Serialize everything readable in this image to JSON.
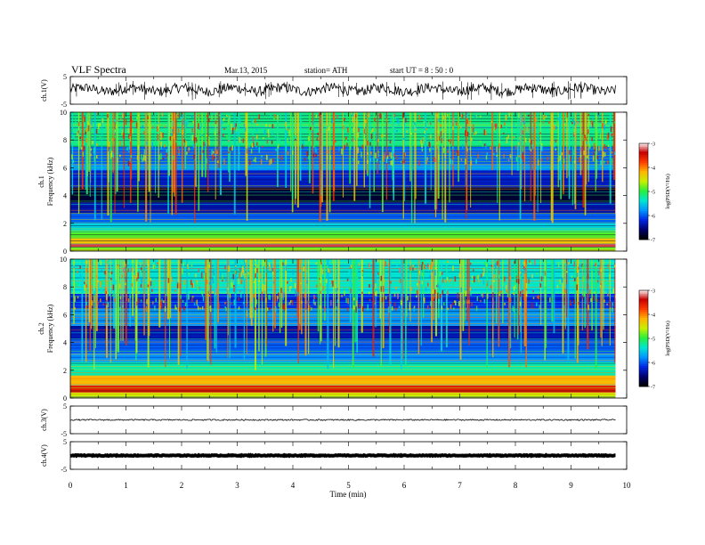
{
  "header": {
    "title": "VLF  Spectra",
    "date": "Mar.13, 2015",
    "station": "station= ATH",
    "start": "start  UT  =    8 : 50 : 0"
  },
  "chart_data": {
    "type": "heatmap",
    "xlabel": "Time  (min)",
    "xlim": [
      0,
      10
    ],
    "x_ticks": [
      "0",
      "1",
      "2",
      "3",
      "4",
      "5",
      "6",
      "7",
      "8",
      "9",
      "10"
    ],
    "data_end_min": 9.8,
    "panels": [
      {
        "kind": "waveform",
        "ylabel": "ch.1(V)",
        "yticks": [
          "5",
          "-5"
        ],
        "ylim": [
          -5,
          5
        ],
        "trace_level": 0.3,
        "noise": "high"
      },
      {
        "kind": "spectrogram",
        "ylabel_channel": "ch.1",
        "ylabel": "Frequency  (kHz)",
        "yticks": [
          "10",
          "8",
          "6",
          "4",
          "2",
          "0"
        ],
        "ylim": [
          0,
          10
        ],
        "colorbar": {
          "label": "log(PSD(V²/Hz)",
          "ticks": [
            "-3",
            "-4",
            "-5",
            "-6",
            "-7"
          ],
          "range": [
            -7,
            -3
          ]
        },
        "bands": [
          {
            "from": 0.0,
            "to": 0.3,
            "level": -4.8
          },
          {
            "from": 0.3,
            "to": 0.5,
            "level": -3.3
          },
          {
            "from": 0.5,
            "to": 0.9,
            "level": -4.3
          },
          {
            "from": 0.9,
            "to": 1.5,
            "level": -4.9
          },
          {
            "from": 1.5,
            "to": 2.0,
            "level": -5.5
          },
          {
            "from": 2.0,
            "to": 2.7,
            "level": -6.0
          },
          {
            "from": 2.7,
            "to": 3.5,
            "level": -6.4
          },
          {
            "from": 3.5,
            "to": 4.6,
            "level": -6.8
          },
          {
            "from": 4.6,
            "to": 5.8,
            "level": -6.3
          },
          {
            "from": 5.8,
            "to": 6.2,
            "level": -5.8
          },
          {
            "from": 6.2,
            "to": 7.5,
            "level": -6.0
          },
          {
            "from": 7.5,
            "to": 10.0,
            "level": -5.2
          }
        ]
      },
      {
        "kind": "spectrogram",
        "ylabel_channel": "ch.2",
        "ylabel": "Frequency  (kHz)",
        "yticks": [
          "10",
          "8",
          "6",
          "4",
          "2",
          "0"
        ],
        "ylim": [
          0,
          10
        ],
        "colorbar": {
          "label": "log(PSD(V²/Hz)",
          "ticks": [
            "-3",
            "-4",
            "-5",
            "-6",
            "-7"
          ],
          "range": [
            -7,
            -3
          ]
        },
        "bands": [
          {
            "from": 0.0,
            "to": 0.4,
            "level": -4.6
          },
          {
            "from": 0.4,
            "to": 0.9,
            "level": -3.6
          },
          {
            "from": 0.9,
            "to": 1.6,
            "level": -4.2
          },
          {
            "from": 1.6,
            "to": 2.6,
            "level": -5.3
          },
          {
            "from": 2.6,
            "to": 3.2,
            "level": -5.8
          },
          {
            "from": 3.2,
            "to": 4.2,
            "level": -6.0
          },
          {
            "from": 4.2,
            "to": 5.2,
            "level": -6.4
          },
          {
            "from": 5.2,
            "to": 6.4,
            "level": -5.8
          },
          {
            "from": 6.4,
            "to": 7.5,
            "level": -6.2
          },
          {
            "from": 7.5,
            "to": 10.0,
            "level": -5.4
          }
        ]
      },
      {
        "kind": "waveform",
        "ylabel": "ch.3(V)",
        "yticks": [
          "5",
          "-5"
        ],
        "ylim": [
          -5,
          5
        ],
        "trace_level": 0.0,
        "noise": "low"
      },
      {
        "kind": "waveform",
        "ylabel": "ch.4(V)",
        "yticks": [
          "5",
          "-5"
        ],
        "ylim": [
          -5,
          5
        ],
        "trace_level": 0.0,
        "noise": "thick"
      }
    ]
  }
}
